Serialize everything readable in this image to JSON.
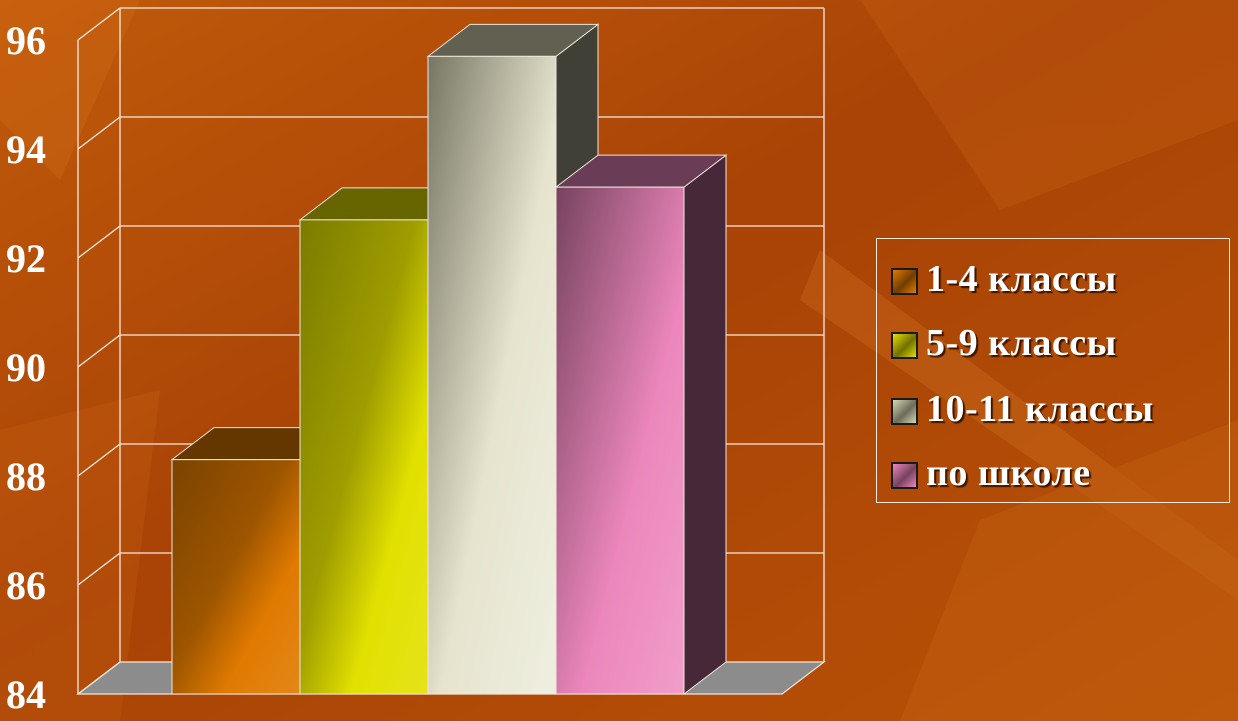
{
  "chart_data": {
    "type": "bar",
    "title": "",
    "xlabel": "",
    "ylabel": "",
    "categories": [
      "1-4 классы",
      "5-9 классы",
      "10-11 классы",
      "по школе"
    ],
    "values": [
      88.3,
      92.7,
      95.7,
      93.3
    ],
    "ylim": [
      84,
      96
    ],
    "yticks": [
      "84",
      "86",
      "88",
      "90",
      "92",
      "94",
      "96"
    ],
    "grid": true,
    "legend_position": "right",
    "three_d": true,
    "colors": [
      "#e07a00",
      "#e2e000",
      "#d8d6b4",
      "#ec86bc"
    ]
  },
  "legend": {
    "items": [
      {
        "label": "1-4 классы",
        "color": "#e07a00"
      },
      {
        "label": "5-9 классы",
        "color": "#e2e000"
      },
      {
        "label": "10-11 классы",
        "color": "#d8d6b4"
      },
      {
        "label": "по школе",
        "color": "#ec86bc"
      }
    ]
  }
}
